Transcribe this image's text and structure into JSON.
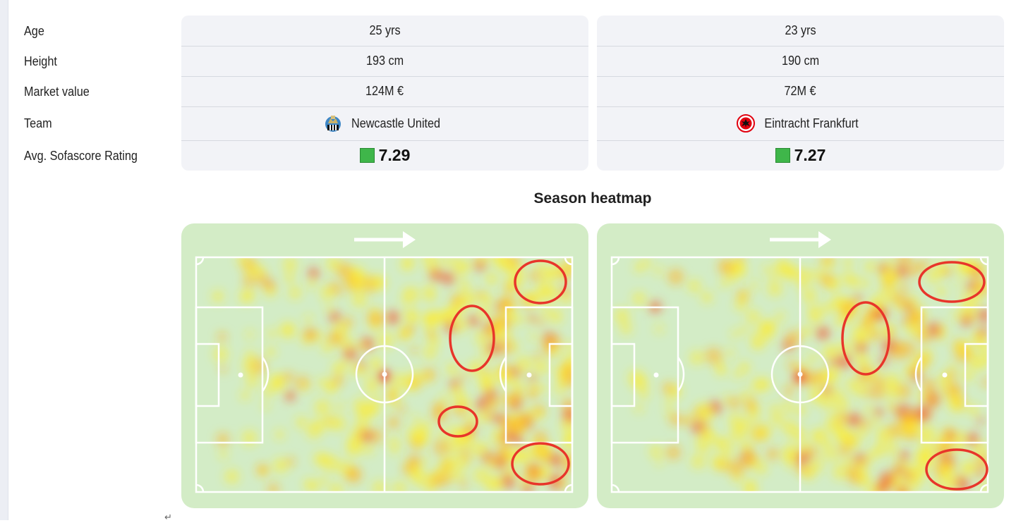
{
  "stats": {
    "rows": [
      {
        "label": "Age",
        "p1": "25 yrs",
        "p2": "23 yrs"
      },
      {
        "label": "Height",
        "p1": "193 cm",
        "p2": "190 cm"
      },
      {
        "label": "Market value",
        "p1": "124M €",
        "p2": "72M €"
      },
      {
        "label": "Team",
        "p1": "Newcastle United",
        "p2": "Eintracht Frankfurt"
      },
      {
        "label": "Avg. Sofascore Rating",
        "p1": "7.29",
        "p2": "7.27"
      }
    ],
    "rating_color": "#3fb64a"
  },
  "teams": {
    "p1_icon": "newcastle-crest-icon",
    "p2_icon": "eintracht-eagle-icon"
  },
  "heatmap": {
    "title": "Season heatmap",
    "direction_icon": "arrow-right-icon",
    "pitch_color": "#d3ecc6",
    "highlight_color": "#e8352a"
  },
  "footer": {
    "caret_glyph": "↵"
  }
}
